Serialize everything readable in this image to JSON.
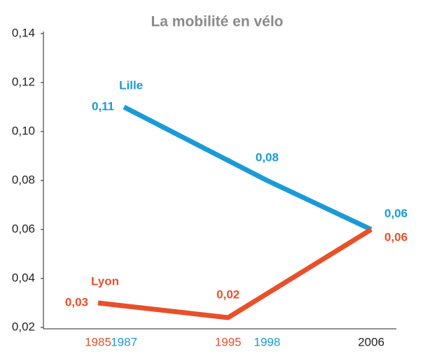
{
  "chart_data": {
    "type": "line",
    "title": "La mobilité en vélo",
    "series": [
      {
        "name": "Lille",
        "color": "#1a9ad6",
        "x": [
          1987,
          1998,
          2006
        ],
        "values": [
          0.11,
          0.08,
          0.06
        ],
        "value_labels": [
          "0,11",
          "0,08",
          "0,06"
        ]
      },
      {
        "name": "Lyon",
        "color": "#e8502a",
        "x": [
          1985,
          1995,
          2006
        ],
        "values": [
          0.03,
          0.024,
          0.06
        ],
        "value_labels": [
          "0,03",
          "0,02",
          "0,06"
        ]
      }
    ],
    "xlim": [
      1985,
      2006
    ],
    "xticks": [
      1985,
      1987,
      1995,
      1998,
      2006
    ],
    "ylim": [
      0.02,
      0.14
    ],
    "yticks": [
      {
        "value": 0.02,
        "label": "0,02"
      },
      {
        "value": 0.04,
        "label": "0,04"
      },
      {
        "value": 0.06,
        "label": "0,06"
      },
      {
        "value": 0.08,
        "label": "0,08"
      },
      {
        "value": 0.1,
        "label": "0,10"
      },
      {
        "value": 0.12,
        "label": "0,12"
      },
      {
        "value": 0.14,
        "label": "0,14"
      }
    ],
    "grid": false
  }
}
